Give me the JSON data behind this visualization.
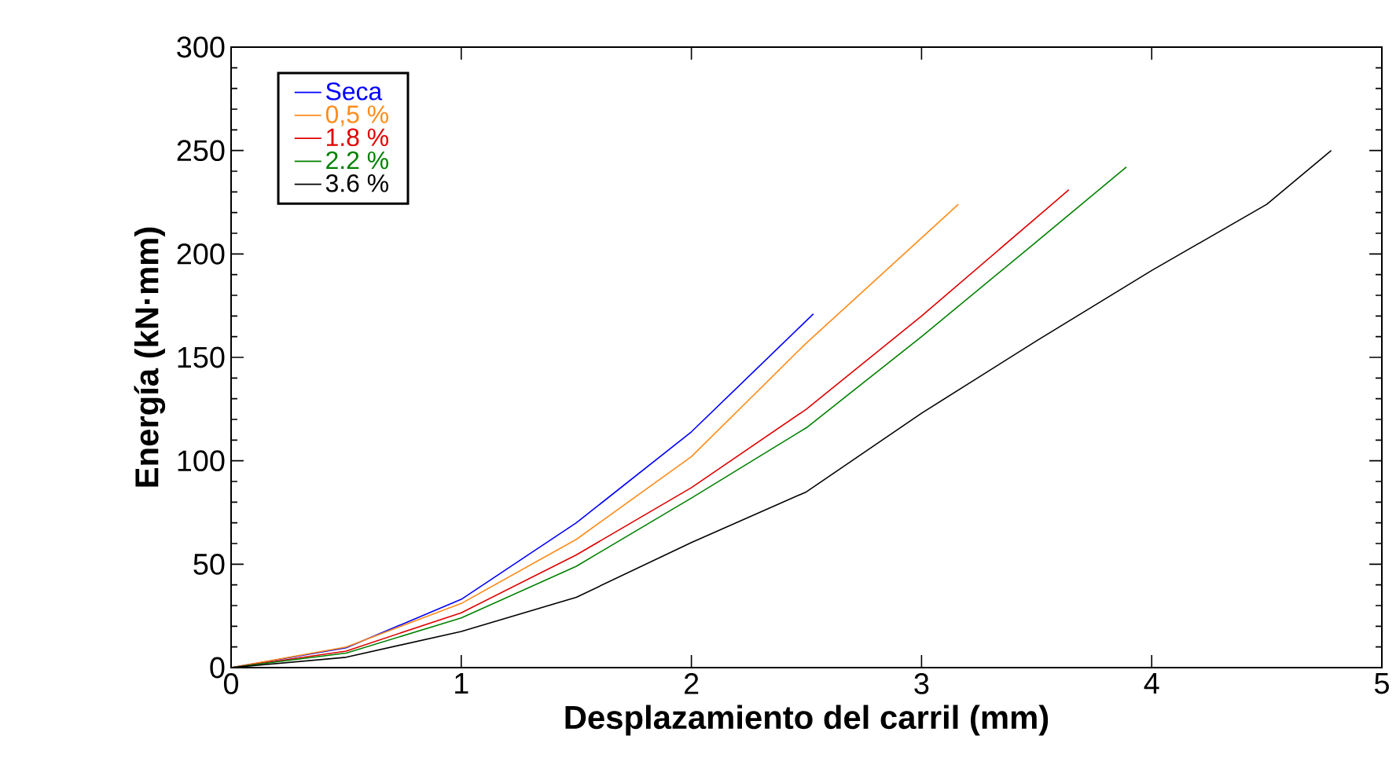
{
  "chart_data": {
    "type": "line",
    "xlabel": "Desplazamiento del carril (mm)",
    "ylabel": "Energía (kN·mm)",
    "xlim": [
      0,
      5
    ],
    "ylim": [
      0,
      300
    ],
    "xticks": [
      0,
      1,
      2,
      3,
      4,
      5
    ],
    "yticks": [
      0,
      50,
      100,
      150,
      200,
      250,
      300
    ],
    "legend": "top left",
    "grid": false,
    "marker": "none",
    "line_style": "solid",
    "series": [
      {
        "name": "Seca",
        "color": "#0000ff",
        "x": [
          0,
          0.5,
          1,
          1.5,
          2,
          2.53
        ],
        "values": [
          0,
          9.6,
          33,
          70,
          114,
          171
        ]
      },
      {
        "name": "0,5 %",
        "color": "#ff8c1a",
        "x": [
          0,
          0.5,
          1,
          1.5,
          2,
          2.5,
          3.16
        ],
        "values": [
          0,
          10,
          31,
          62,
          102,
          157,
          224
        ]
      },
      {
        "name": "1.8 %",
        "color": "#e00000",
        "x": [
          0,
          0.5,
          1,
          1.5,
          2,
          2.5,
          3,
          3.64
        ],
        "values": [
          0,
          8,
          26.5,
          54.5,
          87,
          125,
          170,
          231
        ]
      },
      {
        "name": "2.2 %",
        "color": "#008000",
        "x": [
          0,
          0.5,
          1,
          1.5,
          2,
          2.5,
          3,
          3.5,
          3.89
        ],
        "values": [
          0,
          7,
          24,
          49,
          82,
          116,
          160,
          206,
          242
        ]
      },
      {
        "name": "3.6 %",
        "color": "#000000",
        "x": [
          0,
          0.5,
          1,
          1.5,
          2,
          2.5,
          3,
          3.5,
          4,
          4.5,
          4.78
        ],
        "values": [
          0,
          5,
          17.5,
          34,
          60.5,
          85,
          123,
          158,
          192,
          224,
          250
        ]
      }
    ]
  }
}
